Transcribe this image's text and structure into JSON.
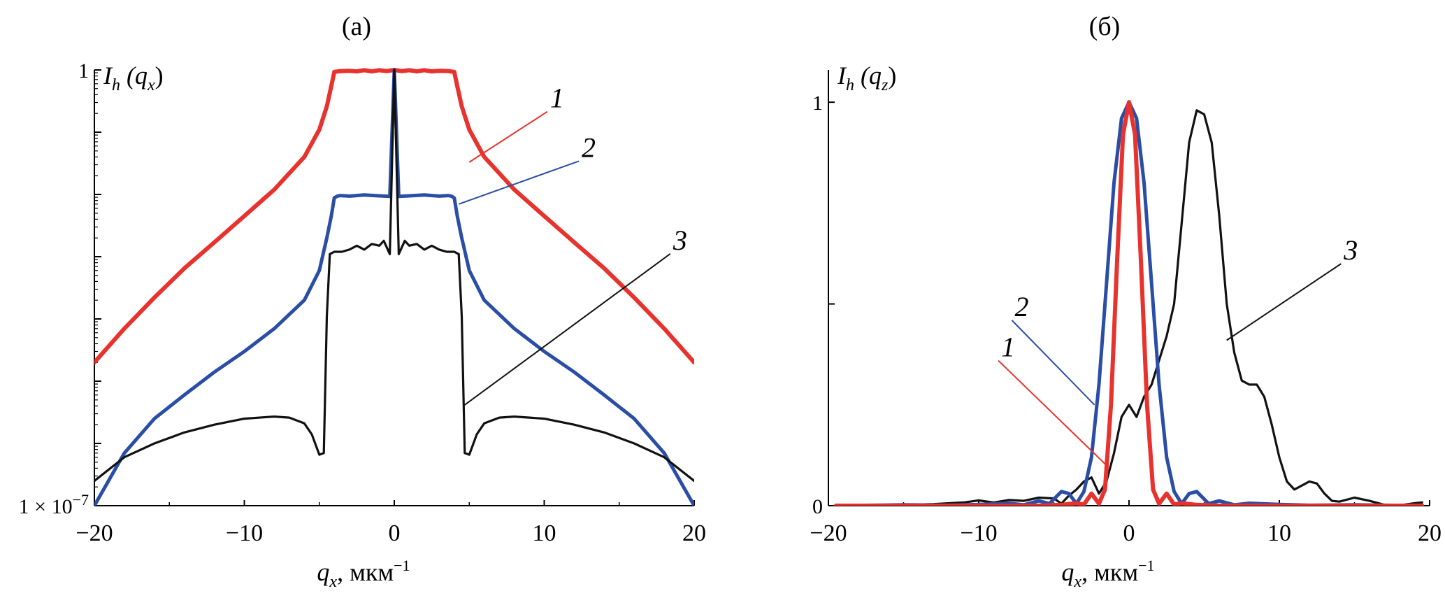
{
  "chart_data": [
    {
      "panel": "(а)",
      "type": "line",
      "y_scale": "log",
      "ylabel": "I_h (q_x)",
      "ylabel_parts": {
        "main": "I",
        "sub": "h",
        "arg_open": " (q",
        "arg_sub": "x",
        "arg_close": ")"
      },
      "xlabel_parts": {
        "var": "q",
        "sub": "x",
        "unit": ", мкм",
        "sup": "−1"
      },
      "xlim": [
        -20,
        20
      ],
      "ylim": [
        1e-07,
        1
      ],
      "xticks": [
        -20,
        -10,
        0,
        10,
        20
      ],
      "xtick_labels": [
        "−20",
        "−10",
        "0",
        "10",
        "20"
      ],
      "ytick_labels": [
        {
          "value": 1,
          "text": "1"
        },
        {
          "value": 1e-07,
          "text": "1 × 10",
          "sup": "−7"
        }
      ],
      "grid": false,
      "series": [
        {
          "name": "1",
          "color": "#e8322d",
          "x": [
            -20,
            -18,
            -16,
            -14,
            -12,
            -10,
            -8,
            -6,
            -5,
            -4.5,
            -4.2,
            -4,
            -3.6,
            -3,
            -2.5,
            -2,
            -1.5,
            -1,
            -0.5,
            0,
            0.5,
            1,
            1.5,
            2,
            2.5,
            3,
            3.6,
            4,
            4.2,
            4.5,
            5,
            6,
            8,
            10,
            12,
            14,
            16,
            18,
            20
          ],
          "y": [
            2e-05,
            7e-05,
            0.00022,
            0.00065,
            0.0017,
            0.0045,
            0.012,
            0.04,
            0.11,
            0.26,
            0.55,
            0.93,
            0.96,
            0.97,
            0.95,
            0.99,
            0.95,
            0.99,
            0.96,
            1.0,
            0.96,
            0.99,
            0.95,
            0.99,
            0.95,
            0.97,
            0.96,
            0.93,
            0.55,
            0.26,
            0.11,
            0.04,
            0.012,
            0.0045,
            0.0017,
            0.00065,
            0.00022,
            7e-05,
            2e-05
          ]
        },
        {
          "name": "2",
          "color": "#2a4ea6",
          "x": [
            -20,
            -18,
            -16,
            -14,
            -12,
            -10,
            -8,
            -6,
            -5,
            -4.5,
            -4.2,
            -4,
            -3.8,
            -3.6,
            -3,
            -2,
            -1,
            -0.3,
            0,
            0.3,
            1,
            2,
            3,
            3.6,
            3.8,
            4,
            4.2,
            4.5,
            5,
            6,
            8,
            10,
            12,
            14,
            16,
            18,
            20
          ],
          "y": [
            1e-07,
            7e-07,
            2.5e-06,
            6e-06,
            1.4e-05,
            3e-05,
            7e-05,
            0.0002,
            0.0006,
            0.002,
            0.0045,
            0.0088,
            0.0094,
            0.0096,
            0.0094,
            0.0098,
            0.0095,
            0.0093,
            1.0,
            0.0093,
            0.0095,
            0.0098,
            0.0094,
            0.0096,
            0.0094,
            0.0088,
            0.0045,
            0.002,
            0.0006,
            0.0002,
            7e-05,
            3e-05,
            1.4e-05,
            6e-06,
            2.5e-06,
            7e-07,
            1e-07
          ]
        },
        {
          "name": "3",
          "color": "#111111",
          "x": [
            -20,
            -18,
            -16,
            -14,
            -12,
            -10,
            -8,
            -7,
            -6,
            -5.5,
            -5,
            -4.7,
            -4.5,
            -4.3,
            -4,
            -3.5,
            -3,
            -2.5,
            -2,
            -1.5,
            -1,
            -0.7,
            -0.3,
            0,
            0.3,
            0.7,
            1,
            1.5,
            2,
            2.5,
            3,
            3.5,
            4,
            4.3,
            4.5,
            4.7,
            5,
            5.5,
            6,
            7,
            8,
            10,
            12,
            14,
            16,
            18,
            20
          ],
          "y": [
            2.5e-07,
            6e-07,
            1e-06,
            1.5e-06,
            2e-06,
            2.5e-06,
            2.7e-06,
            2.6e-06,
            2.1e-06,
            1.4e-06,
            6.6e-07,
            7e-07,
            0.00011,
            0.0011,
            0.0012,
            0.0012,
            0.0013,
            0.0015,
            0.0013,
            0.0016,
            0.0015,
            0.0018,
            0.0011,
            1.0,
            0.0011,
            0.0018,
            0.0015,
            0.0016,
            0.0013,
            0.0015,
            0.0013,
            0.0012,
            0.0012,
            0.0011,
            0.00011,
            7e-07,
            6.6e-07,
            1.4e-06,
            2.1e-06,
            2.6e-06,
            2.7e-06,
            2.5e-06,
            2e-06,
            1.5e-06,
            1e-06,
            6e-07,
            2.5e-07
          ]
        }
      ],
      "callouts": [
        {
          "text": "1",
          "color": "#e8322d",
          "label_at": [
            10.3,
            0.25
          ],
          "point_at": [
            5,
            0.033
          ]
        },
        {
          "text": "2",
          "color": "#2a4ea6",
          "label_at": [
            12.4,
            0.04
          ],
          "point_at": [
            4.3,
            0.007
          ]
        },
        {
          "text": "3",
          "color": "#111111",
          "label_at": [
            18.5,
            0.0013
          ],
          "point_at": [
            4.6,
            4e-06
          ]
        }
      ]
    },
    {
      "panel": "(б)",
      "type": "line",
      "y_scale": "linear",
      "ylabel": "I_h (q_z)",
      "ylabel_parts": {
        "main": "I",
        "sub": "h",
        "arg_open": " (q",
        "arg_sub": "z",
        "arg_close": ")"
      },
      "xlabel_parts": {
        "var": "q",
        "sub": "x",
        "unit": ", мкм",
        "sup": "−1"
      },
      "xlim": [
        -20,
        20
      ],
      "ylim": [
        0,
        1.08
      ],
      "xticks": [
        -20,
        -10,
        0,
        10,
        20
      ],
      "xtick_labels": [
        "−20",
        "−10",
        "0",
        "10",
        "20"
      ],
      "ytick_labels": [
        {
          "value": 1,
          "text": "1"
        },
        {
          "value": 0,
          "text": "0"
        }
      ],
      "yticks_unlabeled": [
        0.5
      ],
      "grid": false,
      "series": [
        {
          "name": "1",
          "color": "#e8322d",
          "x": [
            -19.5,
            -10,
            -6,
            -4.5,
            -3.5,
            -3,
            -2.5,
            -2,
            -1.6,
            -1.2,
            -0.8,
            -0.4,
            0,
            0.4,
            0.8,
            1.2,
            1.6,
            2,
            2.5,
            3,
            3.5,
            4.5,
            6,
            10,
            19.5
          ],
          "y": [
            0,
            0,
            0,
            0.002,
            0.006,
            0.003,
            0.03,
            0.005,
            0.04,
            0.25,
            0.6,
            0.92,
            1.0,
            0.92,
            0.6,
            0.25,
            0.04,
            0.005,
            0.03,
            0.003,
            0.006,
            0.002,
            0,
            0,
            0
          ]
        },
        {
          "name": "2",
          "color": "#2a4ea6",
          "x": [
            -19.5,
            -17,
            -15,
            -12,
            -10,
            -8,
            -7,
            -6,
            -5.3,
            -4.5,
            -4,
            -3.5,
            -3,
            -2.5,
            -2,
            -1.5,
            -1,
            -0.5,
            0,
            0.5,
            1,
            1.5,
            2,
            2.5,
            3,
            3.5,
            4,
            4.5,
            5.3,
            6,
            7,
            8,
            10,
            12,
            15,
            17,
            19.5
          ],
          "y": [
            0,
            0.001,
            0.002,
            0.001,
            0.003,
            0.006,
            0.002,
            0.012,
            0.005,
            0.035,
            0.03,
            0.005,
            0.035,
            0.12,
            0.3,
            0.55,
            0.8,
            0.96,
            1.0,
            0.96,
            0.8,
            0.55,
            0.3,
            0.12,
            0.035,
            0.005,
            0.03,
            0.035,
            0.005,
            0.012,
            0.002,
            0.006,
            0.003,
            0.001,
            0.002,
            0.001,
            0
          ]
        },
        {
          "name": "3",
          "color": "#111111",
          "x": [
            -19.5,
            -17,
            -15,
            -13,
            -11,
            -10,
            -9,
            -8,
            -7,
            -6,
            -5,
            -4.5,
            -4,
            -3.5,
            -3,
            -2.5,
            -2,
            -1.5,
            -1,
            -0.5,
            0,
            0.5,
            1,
            1.5,
            2,
            2.5,
            3,
            3.5,
            4,
            4.5,
            5,
            5.5,
            6,
            6.5,
            7,
            7.5,
            8,
            8.5,
            9,
            9.5,
            10,
            10.5,
            11,
            11.5,
            12,
            12.5,
            13,
            13.5,
            14,
            15,
            16,
            17,
            18,
            19,
            19.5
          ],
          "y": [
            0,
            0.001,
            0.002,
            0.004,
            0.008,
            0.013,
            0.008,
            0.014,
            0.012,
            0.02,
            0.018,
            0.005,
            0.025,
            0.04,
            0.06,
            0.07,
            0.03,
            0.06,
            0.13,
            0.22,
            0.25,
            0.22,
            0.27,
            0.3,
            0.36,
            0.42,
            0.5,
            0.7,
            0.9,
            0.98,
            0.97,
            0.9,
            0.72,
            0.5,
            0.38,
            0.31,
            0.3,
            0.3,
            0.27,
            0.2,
            0.12,
            0.06,
            0.04,
            0.05,
            0.06,
            0.055,
            0.03,
            0.012,
            0.01,
            0.02,
            0.012,
            0.002,
            0.001,
            0.006,
            0.008
          ]
        }
      ],
      "callouts": [
        {
          "text": "2",
          "color": "#2a4ea6",
          "label_at": [
            -7.7,
            0.47
          ],
          "point_at": [
            -2.3,
            0.25
          ]
        },
        {
          "text": "1",
          "color": "#e8322d",
          "label_at": [
            -8.6,
            0.37
          ],
          "point_at": [
            -1.5,
            0.1
          ]
        },
        {
          "text": "3",
          "color": "#111111",
          "label_at": [
            14.2,
            0.61
          ],
          "point_at": [
            6.5,
            0.41
          ]
        }
      ]
    }
  ]
}
